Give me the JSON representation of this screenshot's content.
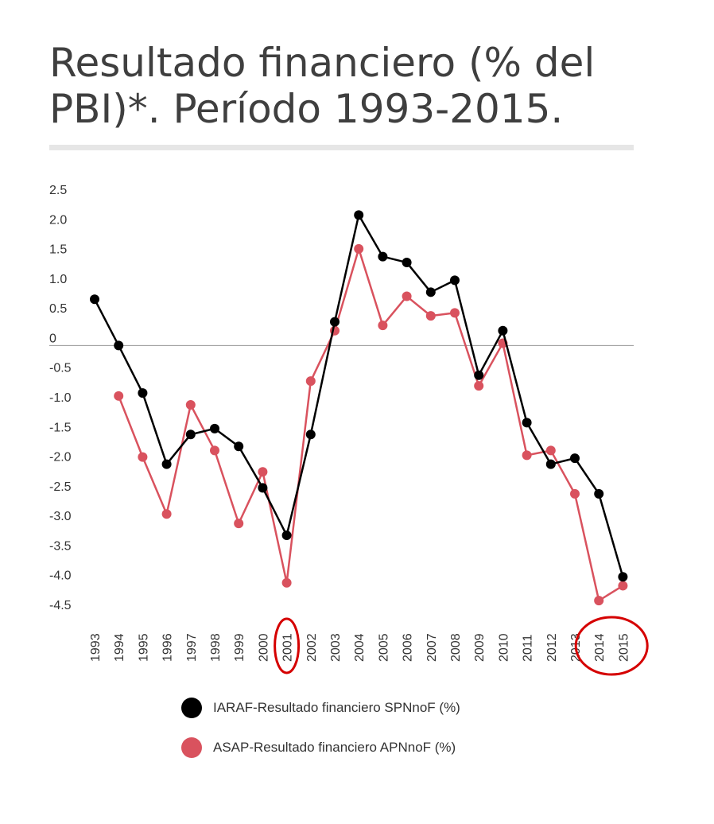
{
  "title": "Resultado financiero (% del PBI)*. Período 1993-2015.",
  "chart_data": {
    "type": "line",
    "x": [
      "1993",
      "1994",
      "1995",
      "1996",
      "1997",
      "1998",
      "1999",
      "2000",
      "2001",
      "2002",
      "2003",
      "2004",
      "2005",
      "2006",
      "2007",
      "2008",
      "2009",
      "2010",
      "2011",
      "2012",
      "2013",
      "2014",
      "2015"
    ],
    "ylim": [
      -4.5,
      2.5
    ],
    "yticks": [
      2.5,
      2.0,
      1.5,
      1.0,
      0.5,
      0,
      -0.5,
      -1.0,
      -1.5,
      -2.0,
      -2.5,
      -3.0,
      -3.5,
      -4.0,
      -4.5
    ],
    "ytick_labels": [
      "2.5",
      "2.0",
      "1.5",
      "1.0",
      "0.5",
      "0",
      "-0.5",
      "-1.0",
      "-1.5",
      "-2.0",
      "-2.5",
      "-3.0",
      "-3.5",
      "-4.0",
      "-4.5"
    ],
    "series": [
      {
        "name": "IARAF-Resultado financiero SPNnoF (%)",
        "color": "#000000",
        "values": [
          0.78,
          0.0,
          -0.8,
          -2.0,
          -1.5,
          -1.4,
          -1.7,
          -2.4,
          -3.2,
          -1.5,
          0.4,
          2.2,
          1.5,
          1.4,
          0.9,
          1.1,
          -0.5,
          0.25,
          -1.3,
          -2.0,
          -1.9,
          -2.5,
          -3.9
        ]
      },
      {
        "name": "ASAP-Resultado financiero APNnoF (%)",
        "color": "#d9525e",
        "values": [
          null,
          -0.85,
          -1.88,
          -2.84,
          -1.0,
          -1.77,
          -3.0,
          -2.13,
          -4.0,
          -0.6,
          0.25,
          1.63,
          0.34,
          0.83,
          0.5,
          0.55,
          -0.68,
          0.04,
          -1.85,
          -1.77,
          -2.5,
          -4.3,
          -4.05
        ]
      }
    ],
    "annotations": [
      {
        "type": "circle",
        "target": "2001",
        "color": "#d50000"
      },
      {
        "type": "circle",
        "target": "2014-2015",
        "color": "#d50000"
      }
    ]
  },
  "legend": [
    {
      "label": "IARAF-Resultado financiero SPNnoF (%)",
      "color": "#000000"
    },
    {
      "label": "ASAP-Resultado financiero APNnoF (%)",
      "color": "#d9525e"
    }
  ]
}
